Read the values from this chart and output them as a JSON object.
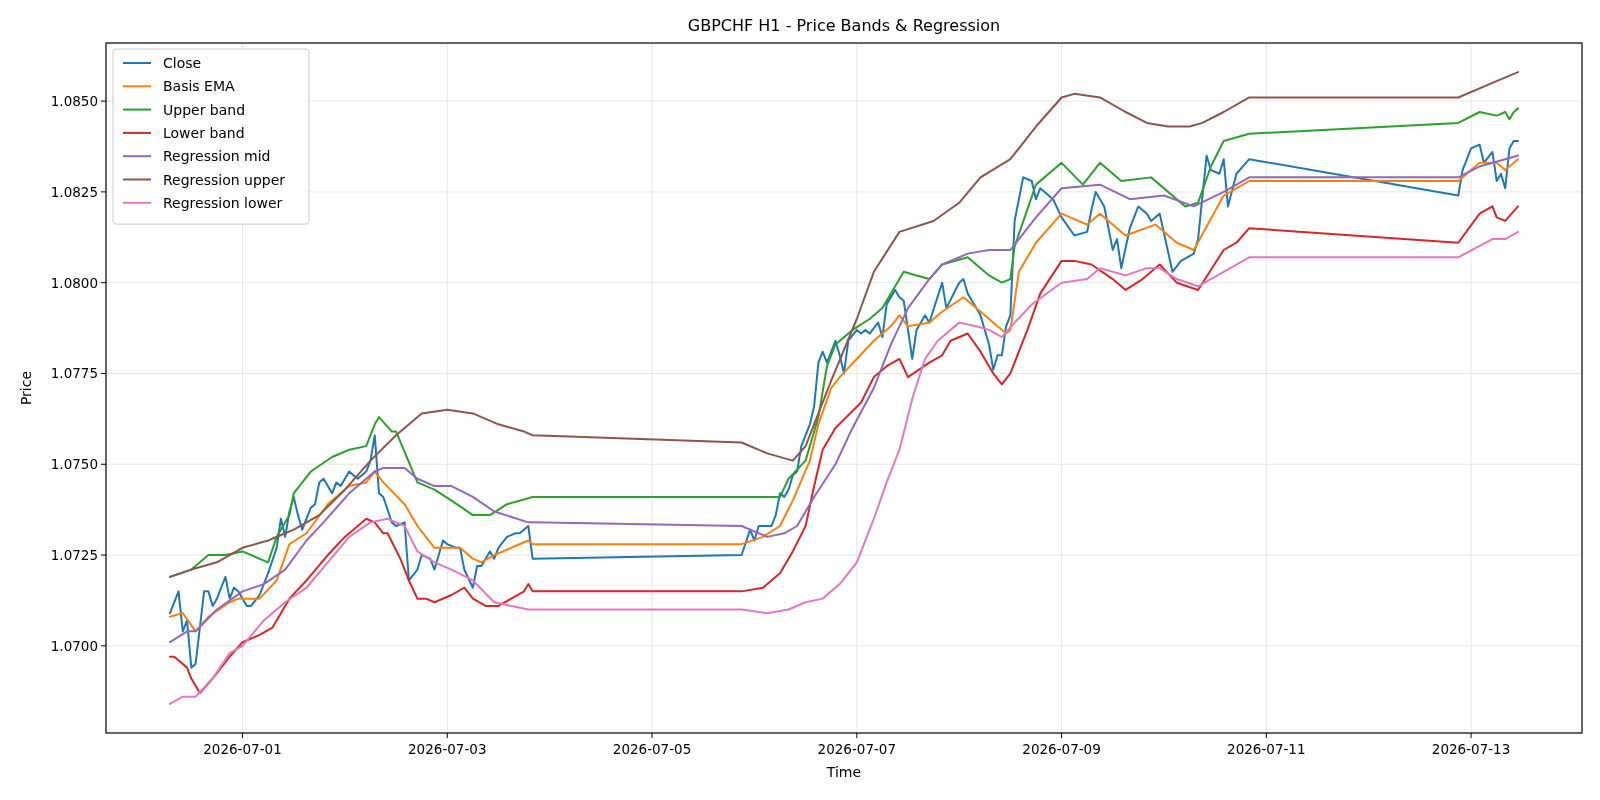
{
  "chart_data": {
    "type": "line",
    "title": "GBPCHF H1 - Price Bands & Regression",
    "xlabel": "Time",
    "ylabel": "Price",
    "xlim": [
      "2026-06-29T16:00",
      "2026-07-14T02:00"
    ],
    "xticks": [
      "2026-07-01",
      "2026-07-03",
      "2026-07-05",
      "2026-07-07",
      "2026-07-09",
      "2026-07-11",
      "2026-07-13"
    ],
    "ylim": [
      1.0676,
      1.0866
    ],
    "yticks": [
      {
        "value": 1.07,
        "label": "1.0700"
      },
      {
        "value": 1.0725,
        "label": "1.0725"
      },
      {
        "value": 1.075,
        "label": "1.0750"
      },
      {
        "value": 1.0775,
        "label": "1.0775"
      },
      {
        "value": 1.08,
        "label": "1.0800"
      },
      {
        "value": 1.0825,
        "label": "1.0825"
      },
      {
        "value": 1.085,
        "label": "1.0850"
      }
    ],
    "grid": true,
    "legend": "top left",
    "marker": "none",
    "line_style": "solid",
    "series": [
      {
        "name": "Close",
        "color": "#1f77b4",
        "x": [
          "2026-06-30T07:00",
          "2026-06-30T09:00",
          "2026-06-30T10:00",
          "2026-06-30T11:00",
          "2026-06-30T12:00",
          "2026-06-30T13:00",
          "2026-06-30T15:00",
          "2026-06-30T16:00",
          "2026-06-30T17:00",
          "2026-06-30T18:00",
          "2026-06-30T20:00",
          "2026-06-30T21:00",
          "2026-06-30T22:00",
          "2026-06-30T23:00",
          "2026-07-01T01:00",
          "2026-07-01T02:00",
          "2026-07-01T04:00",
          "2026-07-01T06:00",
          "2026-07-01T08:00",
          "2026-07-01T09:00",
          "2026-07-01T10:00",
          "2026-07-01T11:00",
          "2026-07-01T12:00",
          "2026-07-01T13:00",
          "2026-07-01T14:00",
          "2026-07-01T16:00",
          "2026-07-01T17:00",
          "2026-07-01T18:00",
          "2026-07-01T19:00",
          "2026-07-01T21:00",
          "2026-07-01T22:00",
          "2026-07-01T23:00",
          "2026-07-02T01:00",
          "2026-07-02T03:00",
          "2026-07-02T05:00",
          "2026-07-02T06:00",
          "2026-07-02T07:00",
          "2026-07-02T08:00",
          "2026-07-02T09:00",
          "2026-07-02T11:00",
          "2026-07-02T12:00",
          "2026-07-02T14:00",
          "2026-07-02T15:00",
          "2026-07-02T17:00",
          "2026-07-02T18:00",
          "2026-07-02T20:00",
          "2026-07-02T21:00",
          "2026-07-02T23:00",
          "2026-07-03T00:00",
          "2026-07-03T02:00",
          "2026-07-03T03:00",
          "2026-07-03T04:00",
          "2026-07-03T06:00",
          "2026-07-03T07:00",
          "2026-07-03T08:00",
          "2026-07-03T10:00",
          "2026-07-03T11:00",
          "2026-07-03T12:00",
          "2026-07-03T14:00",
          "2026-07-03T16:00",
          "2026-07-03T17:00",
          "2026-07-03T19:00",
          "2026-07-03T20:00",
          "2026-07-05T21:00",
          "2026-07-05T23:00",
          "2026-07-06T00:00",
          "2026-07-06T01:00",
          "2026-07-06T04:00",
          "2026-07-06T05:00",
          "2026-07-06T06:00",
          "2026-07-06T07:00",
          "2026-07-06T08:00",
          "2026-07-06T09:00",
          "2026-07-06T10:00",
          "2026-07-06T11:00",
          "2026-07-06T13:00",
          "2026-07-06T14:00",
          "2026-07-06T15:00",
          "2026-07-06T16:00",
          "2026-07-06T17:00",
          "2026-07-06T19:00",
          "2026-07-06T20:00",
          "2026-07-06T21:00",
          "2026-07-06T22:00",
          "2026-07-07T00:00",
          "2026-07-07T01:00",
          "2026-07-07T02:00",
          "2026-07-07T03:00",
          "2026-07-07T05:00",
          "2026-07-07T06:00",
          "2026-07-07T07:00",
          "2026-07-07T09:00",
          "2026-07-07T10:00",
          "2026-07-07T11:00",
          "2026-07-07T13:00",
          "2026-07-07T14:00",
          "2026-07-07T16:00",
          "2026-07-07T17:00",
          "2026-07-07T20:00",
          "2026-07-07T21:00",
          "2026-07-08T00:00",
          "2026-07-08T01:00",
          "2026-07-08T02:00",
          "2026-07-08T05:00",
          "2026-07-08T07:00",
          "2026-07-08T08:00",
          "2026-07-08T09:00",
          "2026-07-08T10:00",
          "2026-07-08T11:00",
          "2026-07-08T12:00",
          "2026-07-08T13:00",
          "2026-07-08T15:00",
          "2026-07-08T17:00",
          "2026-07-08T18:00",
          "2026-07-08T19:00",
          "2026-07-08T22:00",
          "2026-07-09T00:00",
          "2026-07-09T03:00",
          "2026-07-09T06:00",
          "2026-07-09T07:00",
          "2026-07-09T08:00",
          "2026-07-09T10:00",
          "2026-07-09T12:00",
          "2026-07-09T13:00",
          "2026-07-09T14:00",
          "2026-07-09T16:00",
          "2026-07-09T18:00",
          "2026-07-09T20:00",
          "2026-07-09T21:00",
          "2026-07-09T23:00",
          "2026-07-10T02:00",
          "2026-07-10T04:00",
          "2026-07-10T07:00",
          "2026-07-10T08:00",
          "2026-07-10T10:00",
          "2026-07-10T11:00",
          "2026-07-10T13:00",
          "2026-07-10T14:00",
          "2026-07-10T15:00",
          "2026-07-10T17:00",
          "2026-07-10T20:00",
          "2026-07-12T21:00",
          "2026-07-12T22:00",
          "2026-07-13T00:00",
          "2026-07-13T02:00",
          "2026-07-13T03:00",
          "2026-07-13T05:00",
          "2026-07-13T06:00",
          "2026-07-13T07:00",
          "2026-07-13T08:00",
          "2026-07-13T09:00",
          "2026-07-13T10:00",
          "2026-07-13T11:00"
        ],
        "values": [
          1.0709,
          1.0715,
          1.0704,
          1.0707,
          1.0694,
          1.0695,
          1.0715,
          1.0715,
          1.0711,
          1.0713,
          1.0719,
          1.0713,
          1.0716,
          1.0715,
          1.0711,
          1.0711,
          1.0714,
          1.072,
          1.0727,
          1.0735,
          1.073,
          1.0737,
          1.0741,
          1.0736,
          1.0732,
          1.0738,
          1.0739,
          1.0745,
          1.0746,
          1.0742,
          1.0745,
          1.0744,
          1.0748,
          1.0746,
          1.0748,
          1.0751,
          1.0758,
          1.0742,
          1.0741,
          1.0734,
          1.0733,
          1.0734,
          1.0718,
          1.0721,
          1.0725,
          1.0724,
          1.0721,
          1.0729,
          1.0728,
          1.0727,
          1.0727,
          1.0721,
          1.0716,
          1.0722,
          1.0722,
          1.0726,
          1.0724,
          1.0727,
          1.073,
          1.0731,
          1.0731,
          1.0733,
          1.0724,
          1.0725,
          1.0732,
          1.0729,
          1.0733,
          1.0733,
          1.0736,
          1.0742,
          1.0741,
          1.0743,
          1.0747,
          1.0748,
          1.0755,
          1.0761,
          1.0766,
          1.0778,
          1.0781,
          1.0778,
          1.0784,
          1.078,
          1.0775,
          1.0784,
          1.0787,
          1.0786,
          1.0787,
          1.0786,
          1.0789,
          1.0785,
          1.0794,
          1.0798,
          1.0796,
          1.0795,
          1.0779,
          1.0787,
          1.0791,
          1.0789,
          1.08,
          1.0793,
          1.08,
          1.0801,
          1.0797,
          1.0791,
          1.0783,
          1.0776,
          1.078,
          1.078,
          1.0788,
          1.0791,
          1.0817,
          1.0829,
          1.0828,
          1.0823,
          1.0826,
          1.0823,
          1.0818,
          1.0813,
          1.0814,
          1.082,
          1.0825,
          1.0821,
          1.0809,
          1.0812,
          1.0804,
          1.0815,
          1.0821,
          1.0819,
          1.0817,
          1.0819,
          1.0803,
          1.0806,
          1.0808,
          1.0812,
          1.0835,
          1.0831,
          1.083,
          1.0834,
          1.0821,
          1.083,
          1.0834,
          1.0824,
          1.0831,
          1.0837,
          1.0838,
          1.0833,
          1.0836,
          1.0828,
          1.083,
          1.0826,
          1.0837,
          1.0839,
          1.0839
        ]
      },
      {
        "name": "Basis EMA",
        "color": "#ff7f0e",
        "x": [
          "2026-06-30T07:00",
          "2026-06-30T10:00",
          "2026-06-30T13:00",
          "2026-06-30T16:00",
          "2026-06-30T21:00",
          "2026-06-30T23:00",
          "2026-07-01T04:00",
          "2026-07-01T08:00",
          "2026-07-01T11:00",
          "2026-07-01T15:00",
          "2026-07-01T20:00",
          "2026-07-02T01:00",
          "2026-07-02T05:00",
          "2026-07-02T07:00",
          "2026-07-02T09:00",
          "2026-07-02T14:00",
          "2026-07-02T17:00",
          "2026-07-02T21:00",
          "2026-07-03T03:00",
          "2026-07-03T06:00",
          "2026-07-03T08:00",
          "2026-07-03T11:00",
          "2026-07-03T19:00",
          "2026-07-03T20:00",
          "2026-07-05T21:00",
          "2026-07-06T02:00",
          "2026-07-06T06:00",
          "2026-07-06T09:00",
          "2026-07-06T13:00",
          "2026-07-06T15:00",
          "2026-07-06T18:00",
          "2026-07-06T20:00",
          "2026-07-07T00:00",
          "2026-07-07T04:00",
          "2026-07-07T08:00",
          "2026-07-07T10:00",
          "2026-07-07T12:00",
          "2026-07-07T17:00",
          "2026-07-07T20:00",
          "2026-07-08T01:00",
          "2026-07-08T04:00",
          "2026-07-08T09:00",
          "2026-07-08T11:00",
          "2026-07-08T12:00",
          "2026-07-08T14:00",
          "2026-07-08T18:00",
          "2026-07-09T00:00",
          "2026-07-09T06:00",
          "2026-07-09T09:00",
          "2026-07-09T15:00",
          "2026-07-09T22:00",
          "2026-07-10T03:00",
          "2026-07-10T07:00",
          "2026-07-10T14:00",
          "2026-07-10T20:00",
          "2026-07-12T21:00",
          "2026-07-13T02:00",
          "2026-07-13T06:00",
          "2026-07-13T08:00",
          "2026-07-13T11:00"
        ],
        "values": [
          1.0708,
          1.0709,
          1.0704,
          1.0708,
          1.0712,
          1.0713,
          1.0713,
          1.0718,
          1.0728,
          1.0731,
          1.0739,
          1.0744,
          1.0745,
          1.0748,
          1.0745,
          1.0739,
          1.0733,
          1.0727,
          1.0727,
          1.0724,
          1.0723,
          1.0725,
          1.0729,
          1.0728,
          1.0728,
          1.073,
          1.0733,
          1.074,
          1.0751,
          1.0761,
          1.0771,
          1.0774,
          1.0779,
          1.0784,
          1.0788,
          1.0791,
          1.0788,
          1.0789,
          1.0792,
          1.0796,
          1.0793,
          1.0788,
          1.0786,
          1.0787,
          1.0803,
          1.0811,
          1.0819,
          1.0816,
          1.0819,
          1.0813,
          1.0816,
          1.0811,
          1.0809,
          1.0824,
          1.0828,
          1.0828,
          1.0833,
          1.0833,
          1.0831,
          1.0834
        ]
      },
      {
        "name": "Upper band",
        "color": "#2ca02c",
        "x": [
          "2026-06-30T07:00",
          "2026-06-30T12:00",
          "2026-06-30T16:00",
          "2026-06-30T20:00",
          "2026-07-01T00:00",
          "2026-07-01T06:00",
          "2026-07-01T08:00",
          "2026-07-01T11:00",
          "2026-07-01T12:00",
          "2026-07-01T16:00",
          "2026-07-01T21:00",
          "2026-07-02T01:00",
          "2026-07-02T05:00",
          "2026-07-02T07:00",
          "2026-07-02T08:00",
          "2026-07-02T11:00",
          "2026-07-02T12:00",
          "2026-07-02T17:00",
          "2026-07-02T21:00",
          "2026-07-03T01:00",
          "2026-07-03T06:00",
          "2026-07-03T10:00",
          "2026-07-03T14:00",
          "2026-07-03T20:00",
          "2026-07-05T21:00",
          "2026-07-06T06:00",
          "2026-07-06T08:00",
          "2026-07-06T12:00",
          "2026-07-06T15:00",
          "2026-07-06T17:00",
          "2026-07-06T19:00",
          "2026-07-06T23:00",
          "2026-07-07T03:00",
          "2026-07-07T06:00",
          "2026-07-07T09:00",
          "2026-07-07T11:00",
          "2026-07-07T14:00",
          "2026-07-07T17:00",
          "2026-07-07T20:00",
          "2026-07-08T02:00",
          "2026-07-08T07:00",
          "2026-07-08T10:00",
          "2026-07-08T12:00",
          "2026-07-08T13:00",
          "2026-07-08T18:00",
          "2026-07-09T00:00",
          "2026-07-09T05:00",
          "2026-07-09T09:00",
          "2026-07-09T14:00",
          "2026-07-09T21:00",
          "2026-07-10T03:00",
          "2026-07-10T05:00",
          "2026-07-10T08:00",
          "2026-07-10T11:00",
          "2026-07-10T14:00",
          "2026-07-10T20:00",
          "2026-07-12T21:00",
          "2026-07-13T02:00",
          "2026-07-13T06:00",
          "2026-07-13T08:00",
          "2026-07-13T09:00",
          "2026-07-13T10:00",
          "2026-07-13T11:00"
        ],
        "values": [
          1.0719,
          1.0721,
          1.0725,
          1.0725,
          1.0726,
          1.0723,
          1.073,
          1.0736,
          1.0742,
          1.0748,
          1.0752,
          1.0754,
          1.0755,
          1.0761,
          1.0763,
          1.0759,
          1.0759,
          1.0745,
          1.0743,
          1.074,
          1.0736,
          1.0736,
          1.0739,
          1.0741,
          1.0741,
          1.0741,
          1.0746,
          1.0751,
          1.0763,
          1.0777,
          1.0783,
          1.0787,
          1.079,
          1.0793,
          1.0799,
          1.0803,
          1.0802,
          1.0801,
          1.0805,
          1.0807,
          1.0802,
          1.08,
          1.0801,
          1.081,
          1.0827,
          1.0833,
          1.0827,
          1.0833,
          1.0828,
          1.0829,
          1.0823,
          1.0821,
          1.0822,
          1.0832,
          1.0839,
          1.0841,
          1.0844,
          1.0847,
          1.0846,
          1.0847,
          1.0845,
          1.0847,
          1.0848
        ]
      },
      {
        "name": "Lower band",
        "color": "#d62728",
        "x": [
          "2026-06-30T07:00",
          "2026-06-30T08:00",
          "2026-06-30T11:00",
          "2026-06-30T12:00",
          "2026-06-30T14:00",
          "2026-06-30T17:00",
          "2026-06-30T21:00",
          "2026-07-01T00:00",
          "2026-07-01T04:00",
          "2026-07-01T07:00",
          "2026-07-01T11:00",
          "2026-07-01T15:00",
          "2026-07-01T20:00",
          "2026-07-02T00:00",
          "2026-07-02T05:00",
          "2026-07-02T07:00",
          "2026-07-02T09:00",
          "2026-07-02T10:00",
          "2026-07-02T13:00",
          "2026-07-02T15:00",
          "2026-07-02T17:00",
          "2026-07-02T19:00",
          "2026-07-02T21:00",
          "2026-07-03T01:00",
          "2026-07-03T04:00",
          "2026-07-03T06:00",
          "2026-07-03T09:00",
          "2026-07-03T12:00",
          "2026-07-03T15:00",
          "2026-07-03T18:00",
          "2026-07-03T19:00",
          "2026-07-03T20:00",
          "2026-07-05T21:00",
          "2026-07-06T02:00",
          "2026-07-06T06:00",
          "2026-07-06T09:00",
          "2026-07-06T12:00",
          "2026-07-06T14:00",
          "2026-07-06T16:00",
          "2026-07-06T19:00",
          "2026-07-07T01:00",
          "2026-07-07T04:00",
          "2026-07-07T07:00",
          "2026-07-07T10:00",
          "2026-07-07T12:00",
          "2026-07-07T17:00",
          "2026-07-07T20:00",
          "2026-07-07T22:00",
          "2026-07-08T02:00",
          "2026-07-08T05:00",
          "2026-07-08T08:00",
          "2026-07-08T10:00",
          "2026-07-08T12:00",
          "2026-07-08T16:00",
          "2026-07-08T19:00",
          "2026-07-09T00:00",
          "2026-07-09T03:00",
          "2026-07-09T07:00",
          "2026-07-09T12:00",
          "2026-07-09T15:00",
          "2026-07-09T19:00",
          "2026-07-09T23:00",
          "2026-07-10T03:00",
          "2026-07-10T08:00",
          "2026-07-10T14:00",
          "2026-07-10T17:00",
          "2026-07-10T20:00",
          "2026-07-12T21:00",
          "2026-07-13T02:00",
          "2026-07-13T05:00",
          "2026-07-13T06:00",
          "2026-07-13T08:00",
          "2026-07-13T11:00"
        ],
        "values": [
          1.0697,
          1.0697,
          1.0694,
          1.0691,
          1.0687,
          1.0691,
          1.0697,
          1.0701,
          1.0703,
          1.0705,
          1.0713,
          1.0718,
          1.0725,
          1.073,
          1.0735,
          1.0734,
          1.0731,
          1.0731,
          1.0724,
          1.0718,
          1.0713,
          1.0713,
          1.0712,
          1.0714,
          1.0716,
          1.0713,
          1.0711,
          1.0711,
          1.0713,
          1.0715,
          1.0717,
          1.0715,
          1.0715,
          1.0716,
          1.072,
          1.0726,
          1.0733,
          1.0744,
          1.0754,
          1.076,
          1.0767,
          1.0774,
          1.0777,
          1.0779,
          1.0774,
          1.0778,
          1.078,
          1.0784,
          1.0786,
          1.0781,
          1.0775,
          1.0772,
          1.0775,
          1.0787,
          1.0797,
          1.0806,
          1.0806,
          1.0805,
          1.0801,
          1.0798,
          1.0801,
          1.0805,
          1.08,
          1.0798,
          1.0809,
          1.0811,
          1.0815,
          1.0811,
          1.0819,
          1.0821,
          1.0818,
          1.0817,
          1.0821
        ]
      },
      {
        "name": "Regression mid",
        "color": "#9467bd",
        "x": [
          "2026-06-30T07:00",
          "2026-06-30T11:00",
          "2026-06-30T13:00",
          "2026-06-30T18:00",
          "2026-07-01T00:00",
          "2026-07-01T05:00",
          "2026-07-01T10:00",
          "2026-07-01T15:00",
          "2026-07-01T19:00",
          "2026-07-02T01:00",
          "2026-07-02T07:00",
          "2026-07-02T09:00",
          "2026-07-02T14:00",
          "2026-07-02T17:00",
          "2026-07-02T21:00",
          "2026-07-03T01:00",
          "2026-07-03T06:00",
          "2026-07-03T11:00",
          "2026-07-03T19:00",
          "2026-07-03T20:00",
          "2026-07-05T21:00",
          "2026-07-06T03:00",
          "2026-07-06T07:00",
          "2026-07-06T10:00",
          "2026-07-06T14:00",
          "2026-07-06T19:00",
          "2026-07-06T23:00",
          "2026-07-07T04:00",
          "2026-07-07T08:00",
          "2026-07-07T12:00",
          "2026-07-07T17:00",
          "2026-07-07T20:00",
          "2026-07-08T02:00",
          "2026-07-08T07:00",
          "2026-07-08T12:00",
          "2026-07-08T18:00",
          "2026-07-09T00:00",
          "2026-07-09T09:00",
          "2026-07-09T16:00",
          "2026-07-10T00:00",
          "2026-07-10T07:00",
          "2026-07-10T14:00",
          "2026-07-10T20:00",
          "2026-07-12T21:00",
          "2026-07-13T02:00",
          "2026-07-13T08:00",
          "2026-07-13T11:00"
        ],
        "values": [
          1.0701,
          1.0704,
          1.0704,
          1.071,
          1.0715,
          1.0717,
          1.0721,
          1.0729,
          1.0734,
          1.0742,
          1.0748,
          1.0749,
          1.0749,
          1.0746,
          1.0744,
          1.0744,
          1.0741,
          1.0737,
          1.0734,
          1.0734,
          1.0733,
          1.073,
          1.0731,
          1.0733,
          1.0741,
          1.075,
          1.076,
          1.0771,
          1.0783,
          1.0793,
          1.0801,
          1.0805,
          1.0808,
          1.0809,
          1.0809,
          1.0818,
          1.0826,
          1.0827,
          1.0823,
          1.0824,
          1.0821,
          1.0825,
          1.0829,
          1.0829,
          1.0832,
          1.0834,
          1.0835
        ]
      },
      {
        "name": "Regression upper",
        "color": "#8c564b",
        "x": [
          "2026-06-30T07:00",
          "2026-06-30T12:00",
          "2026-06-30T18:00",
          "2026-07-01T00:00",
          "2026-07-01T06:00",
          "2026-07-01T12:00",
          "2026-07-01T18:00",
          "2026-07-02T00:00",
          "2026-07-02T06:00",
          "2026-07-02T12:00",
          "2026-07-02T18:00",
          "2026-07-03T00:00",
          "2026-07-03T06:00",
          "2026-07-03T12:00",
          "2026-07-03T18:00",
          "2026-07-03T20:00",
          "2026-07-05T21:00",
          "2026-07-06T03:00",
          "2026-07-06T09:00",
          "2026-07-06T12:00",
          "2026-07-06T18:00",
          "2026-07-07T00:00",
          "2026-07-07T04:00",
          "2026-07-07T10:00",
          "2026-07-07T18:00",
          "2026-07-08T00:00",
          "2026-07-08T05:00",
          "2026-07-08T12:00",
          "2026-07-08T18:00",
          "2026-07-09T00:00",
          "2026-07-09T03:00",
          "2026-07-09T09:00",
          "2026-07-09T15:00",
          "2026-07-09T20:00",
          "2026-07-10T01:00",
          "2026-07-10T06:00",
          "2026-07-10T09:00",
          "2026-07-10T14:00",
          "2026-07-10T20:00",
          "2026-07-12T21:00",
          "2026-07-13T05:00",
          "2026-07-13T11:00"
        ],
        "values": [
          1.0719,
          1.0721,
          1.0723,
          1.0727,
          1.0729,
          1.0732,
          1.0736,
          1.0743,
          1.0751,
          1.0758,
          1.0764,
          1.0765,
          1.0764,
          1.0761,
          1.0759,
          1.0758,
          1.0756,
          1.0753,
          1.0751,
          1.0755,
          1.0773,
          1.079,
          1.0803,
          1.0814,
          1.0817,
          1.0822,
          1.0829,
          1.0834,
          1.0843,
          1.0851,
          1.0852,
          1.0851,
          1.0847,
          1.0844,
          1.0843,
          1.0843,
          1.0844,
          1.0847,
          1.0851,
          1.0851,
          1.0855,
          1.0858
        ]
      },
      {
        "name": "Regression lower",
        "color": "#e377c2",
        "x": [
          "2026-06-30T07:00",
          "2026-06-30T10:00",
          "2026-06-30T13:00",
          "2026-06-30T17:00",
          "2026-06-30T21:00",
          "2026-07-01T00:00",
          "2026-07-01T05:00",
          "2026-07-01T10:00",
          "2026-07-01T15:00",
          "2026-07-01T20:00",
          "2026-07-02T01:00",
          "2026-07-02T06:00",
          "2026-07-02T10:00",
          "2026-07-02T14:00",
          "2026-07-02T17:00",
          "2026-07-02T21:00",
          "2026-07-03T01:00",
          "2026-07-03T06:00",
          "2026-07-03T11:00",
          "2026-07-03T19:00",
          "2026-07-03T20:00",
          "2026-07-05T21:00",
          "2026-07-06T03:00",
          "2026-07-06T08:00",
          "2026-07-06T12:00",
          "2026-07-06T16:00",
          "2026-07-06T20:00",
          "2026-07-07T00:00",
          "2026-07-07T04:00",
          "2026-07-07T07:00",
          "2026-07-07T10:00",
          "2026-07-07T13:00",
          "2026-07-07T16:00",
          "2026-07-07T19:00",
          "2026-07-08T00:00",
          "2026-07-08T04:00",
          "2026-07-08T07:00",
          "2026-07-08T10:00",
          "2026-07-08T13:00",
          "2026-07-08T17:00",
          "2026-07-09T00:00",
          "2026-07-09T06:00",
          "2026-07-09T09:00",
          "2026-07-09T15:00",
          "2026-07-09T20:00",
          "2026-07-09T23:00",
          "2026-07-10T03:00",
          "2026-07-10T08:00",
          "2026-07-10T14:00",
          "2026-07-10T20:00",
          "2026-07-12T21:00",
          "2026-07-13T05:00",
          "2026-07-13T08:00",
          "2026-07-13T11:00"
        ],
        "values": [
          1.0684,
          1.0686,
          1.0686,
          1.0691,
          1.0698,
          1.07,
          1.0707,
          1.0712,
          1.0716,
          1.0723,
          1.073,
          1.0734,
          1.0735,
          1.0733,
          1.0726,
          1.0723,
          1.0721,
          1.0718,
          1.0712,
          1.071,
          1.071,
          1.071,
          1.0709,
          1.071,
          1.0712,
          1.0713,
          1.0717,
          1.0723,
          1.0735,
          1.0745,
          1.0754,
          1.0768,
          1.0779,
          1.0784,
          1.0789,
          1.0788,
          1.0787,
          1.0785,
          1.0789,
          1.0794,
          1.08,
          1.0801,
          1.0804,
          1.0802,
          1.0804,
          1.0804,
          1.0801,
          1.0799,
          1.0803,
          1.0807,
          1.0807,
          1.0812,
          1.0812,
          1.0814
        ]
      }
    ]
  }
}
